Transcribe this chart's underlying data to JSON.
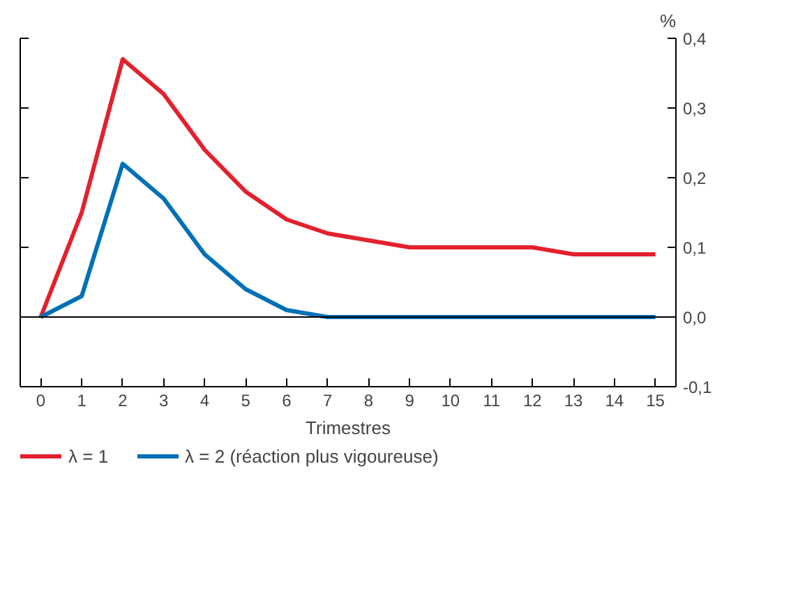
{
  "chart_data": {
    "type": "line",
    "xlabel": "Trimestres",
    "ylabel": "%",
    "x": [
      0,
      1,
      2,
      3,
      4,
      5,
      6,
      7,
      8,
      9,
      10,
      11,
      12,
      13,
      14,
      15
    ],
    "series": [
      {
        "name": "λ = 1",
        "color": "#e3212d",
        "values": [
          0,
          0.15,
          0.37,
          0.32,
          0.24,
          0.18,
          0.14,
          0.12,
          0.11,
          0.1,
          0.1,
          0.1,
          0.1,
          0.09,
          0.09,
          0.09
        ]
      },
      {
        "name": "λ = 2 (réaction plus vigoureuse)",
        "color": "#0070b8",
        "values": [
          0,
          0.03,
          0.22,
          0.17,
          0.09,
          0.04,
          0.01,
          0,
          0,
          0,
          0,
          0,
          0,
          0,
          0,
          0
        ]
      }
    ],
    "xlim": [
      -0.5,
      15.5
    ],
    "xticks": [
      0,
      1,
      2,
      3,
      4,
      5,
      6,
      7,
      8,
      9,
      10,
      11,
      12,
      13,
      14,
      15
    ],
    "ylim": [
      -0.1,
      0.4
    ],
    "yticks": [
      {
        "value": -0.1,
        "label": "-0,1"
      },
      {
        "value": 0,
        "label": "0,0"
      },
      {
        "value": 0.1,
        "label": "0,1"
      },
      {
        "value": 0.2,
        "label": "0,2"
      },
      {
        "value": 0.3,
        "label": "0,3"
      },
      {
        "value": 0.4,
        "label": "0,4"
      }
    ],
    "ref_lines": [
      {
        "axis": "y",
        "value": 0,
        "color": "#000000"
      }
    ],
    "grid": false,
    "legend": "bottom",
    "marker": "none",
    "line_style": "solid"
  }
}
